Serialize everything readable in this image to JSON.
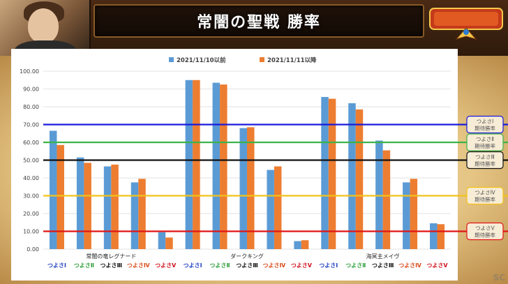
{
  "page": {
    "title": "常闇の聖戦 勝率",
    "watermark": "SC"
  },
  "legend": [
    {
      "label": "2021/11/10以前",
      "color": "#5b9bd5"
    },
    {
      "label": "2021/11/11以降",
      "color": "#ed7d31"
    }
  ],
  "chart_data": {
    "type": "bar",
    "ylim": [
      0,
      100
    ],
    "yticks": [
      "0.00",
      "10.00",
      "20.00",
      "30.00",
      "40.00",
      "50.00",
      "60.00",
      "70.00",
      "80.00",
      "90.00",
      "100.00"
    ],
    "groups": [
      {
        "name": "常闇の竜レグナード",
        "categories": [
          {
            "label": "つよさⅠ",
            "color": "#1f3fbf",
            "before": 66.5,
            "after": 58.5
          },
          {
            "label": "つよさⅡ",
            "color": "#2e9e3a",
            "before": 51.5,
            "after": 48.5
          },
          {
            "label": "つよさⅢ",
            "color": "#111111",
            "before": 46.5,
            "after": 47.5
          },
          {
            "label": "つよさⅣ",
            "color": "#d94a1a",
            "before": 37.5,
            "after": 39.5
          },
          {
            "label": "つよさⅤ",
            "color": "#d0101a",
            "before": 9.5,
            "after": 6.5
          }
        ]
      },
      {
        "name": "ダークキング",
        "categories": [
          {
            "label": "つよさⅠ",
            "color": "#1f3fbf",
            "before": 95.0,
            "after": 95.0
          },
          {
            "label": "つよさⅡ",
            "color": "#2e9e3a",
            "before": 93.5,
            "after": 92.5
          },
          {
            "label": "つよさⅢ",
            "color": "#111111",
            "before": 68.0,
            "after": 68.5
          },
          {
            "label": "つよさⅣ",
            "color": "#d94a1a",
            "before": 44.5,
            "after": 46.5
          },
          {
            "label": "つよさⅤ",
            "color": "#d0101a",
            "before": 4.5,
            "after": 5.0
          }
        ]
      },
      {
        "name": "海冥主メイヴ",
        "categories": [
          {
            "label": "つよさⅠ",
            "color": "#1f3fbf",
            "before": 85.5,
            "after": 84.5
          },
          {
            "label": "つよさⅡ",
            "color": "#2e9e3a",
            "before": 82.0,
            "after": 78.5
          },
          {
            "label": "つよさⅢ",
            "color": "#111111",
            "before": 61.0,
            "after": 55.5
          },
          {
            "label": "つよさⅣ",
            "color": "#d94a1a",
            "before": 37.5,
            "after": 39.5
          },
          {
            "label": "つよさⅤ",
            "color": "#d0101a",
            "before": 14.5,
            "after": 14.0
          }
        ]
      }
    ],
    "reference_lines": [
      {
        "value": 70,
        "color": "#1a1adc",
        "label_line1": "つよさⅠ",
        "label_line2": "期待勝率"
      },
      {
        "value": 60,
        "color": "#3cb34a",
        "label_line1": "つよさⅡ",
        "label_line2": "期待勝率"
      },
      {
        "value": 50,
        "color": "#111111",
        "label_line1": "つよさⅢ",
        "label_line2": "期待勝率"
      },
      {
        "value": 30,
        "color": "#f2c21a",
        "label_line1": "つよさⅣ",
        "label_line2": "期待勝率"
      },
      {
        "value": 10,
        "color": "#e01515",
        "label_line1": "つよさⅤ",
        "label_line2": "期待勝率"
      }
    ],
    "grid": true
  }
}
